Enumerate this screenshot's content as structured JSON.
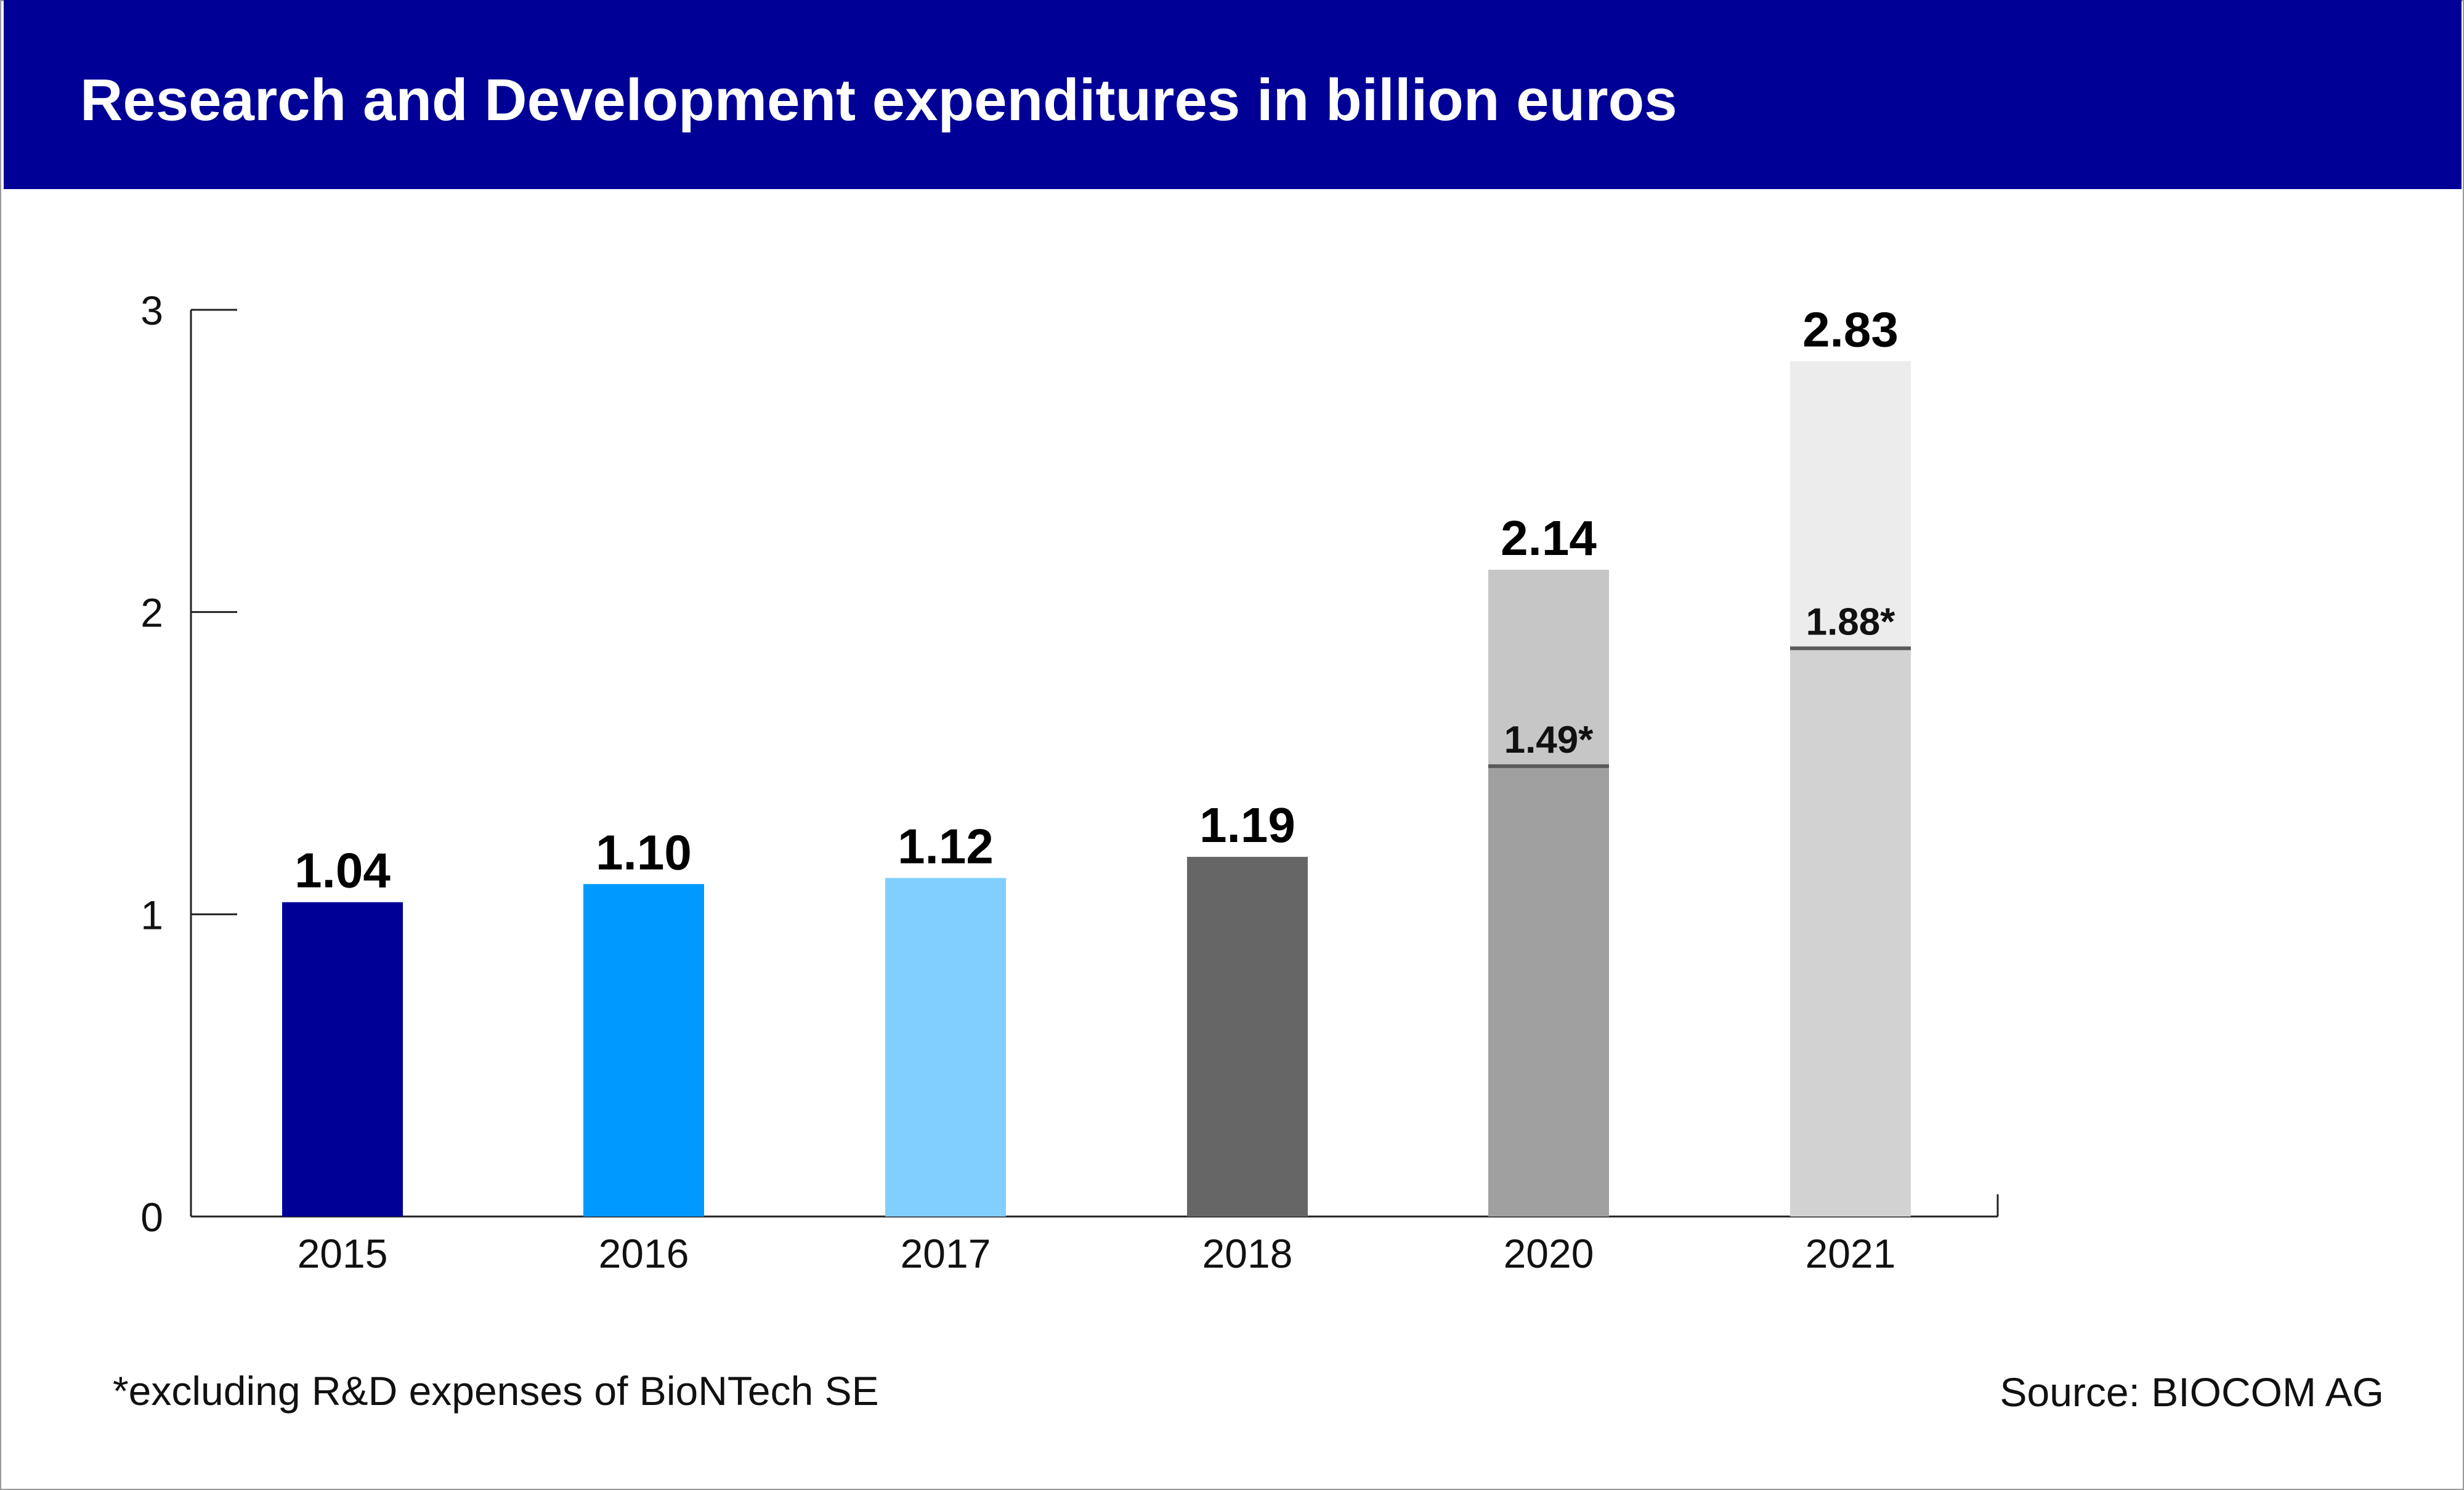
{
  "header": {
    "title": "Research and Development expenditures in billion euros"
  },
  "colors": {
    "header_bg": "#000096",
    "axis": "#222222",
    "divider_line": "#5a5a5a"
  },
  "chart_data": {
    "type": "bar",
    "title": "Research and Development expenditures in billion euros",
    "xlabel": "",
    "ylabel": "",
    "ylim": [
      0,
      3
    ],
    "yticks": [
      0,
      1,
      2,
      3
    ],
    "grid": false,
    "categories": [
      "2015",
      "2016",
      "2017",
      "2018",
      "2020",
      "2021"
    ],
    "values": [
      1.04,
      1.1,
      1.12,
      1.19,
      2.14,
      2.83
    ],
    "value_labels": [
      "1.04",
      "1.10",
      "1.12",
      "1.19",
      "2.14",
      "2.83"
    ],
    "colors": [
      "#000096",
      "#0099ff",
      "#80cfff",
      "#666666",
      "#c6c6c6",
      "#ececec"
    ],
    "excluding_biontech": {
      "description": "*excluding R&D expenses of BioNTech SE",
      "values": [
        null,
        null,
        null,
        null,
        1.49,
        1.88
      ],
      "labels": [
        null,
        null,
        null,
        null,
        "1.49*",
        "1.88*"
      ],
      "colors": [
        null,
        null,
        null,
        null,
        "#a0a0a0",
        "#d2d2d2"
      ]
    }
  },
  "footnote": "*excluding R&D expenses of BioNTech SE",
  "source": "Source: BIOCOM AG"
}
